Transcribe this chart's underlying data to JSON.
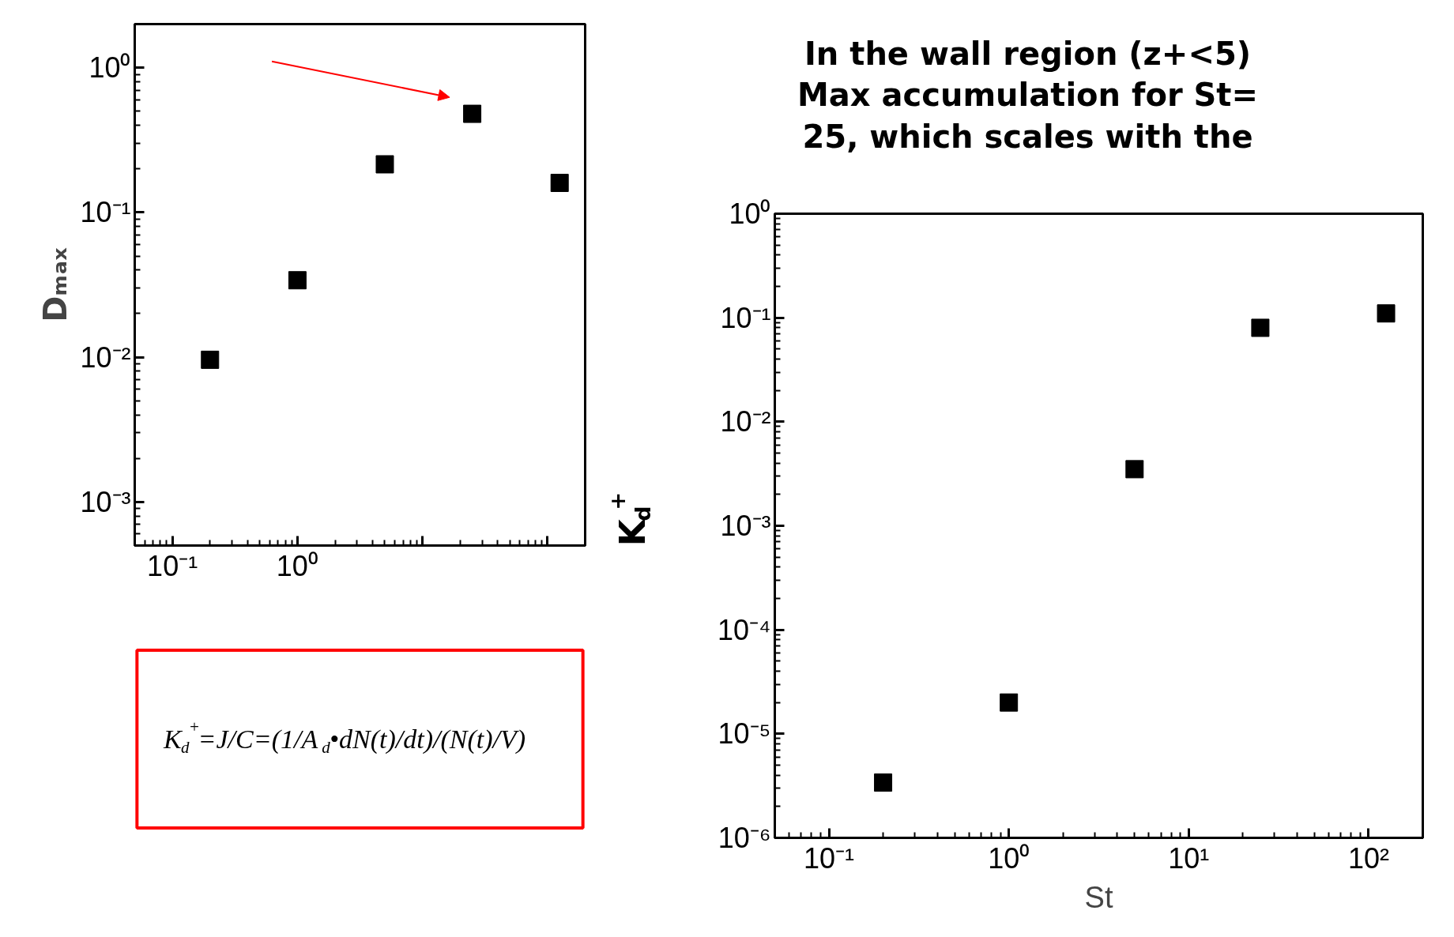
{
  "chart_data": [
    {
      "type": "scatter",
      "ylabel": "Dₘₐₓ",
      "log": "xy",
      "marker": "square",
      "grid": false,
      "xlim": [
        0.05,
        200
      ],
      "ylim": [
        0.0005,
        2
      ],
      "xticks": [
        {
          "value": 0.1,
          "label": "10⁻¹"
        },
        {
          "value": 1,
          "label": "10⁰"
        },
        {
          "value": 10,
          "label": null
        },
        {
          "value": 100,
          "label": null
        }
      ],
      "yticks": [
        {
          "value": 0.001,
          "label": "10⁻³"
        },
        {
          "value": 0.01,
          "label": "10⁻²"
        },
        {
          "value": 0.1,
          "label": "10⁻¹"
        },
        {
          "value": 1,
          "label": "10⁰"
        }
      ],
      "x": [
        0.2,
        1,
        5,
        25,
        125
      ],
      "series": [
        {
          "color": "#000000",
          "values": [
            0.0096,
            0.034,
            0.215,
            0.48,
            0.16
          ]
        }
      ],
      "annotations": [
        "In the wall region (z+<5) Max accumulation for St= 25, which scales with the"
      ]
    },
    {
      "type": "scatter",
      "xlabel": "St",
      "ylabel": "K$_{d}$$^{+}$",
      "log": "xy",
      "marker": "square",
      "grid": false,
      "xlim": [
        0.05,
        200
      ],
      "ylim": [
        1e-06,
        1
      ],
      "xticks": [
        {
          "value": 0.1,
          "label": "10⁻¹"
        },
        {
          "value": 1,
          "label": "10⁰"
        },
        {
          "value": 10,
          "label": "10¹"
        },
        {
          "value": 100,
          "label": "10²"
        }
      ],
      "yticks": [
        {
          "value": 1e-06,
          "label": "10⁻⁶"
        },
        {
          "value": 1e-05,
          "label": "10⁻⁵"
        },
        {
          "value": 0.0001,
          "label": "10⁻⁴"
        },
        {
          "value": 0.001,
          "label": "10⁻³"
        },
        {
          "value": 0.01,
          "label": "10⁻²"
        },
        {
          "value": 0.1,
          "label": "10⁻¹"
        },
        {
          "value": 1,
          "label": "10⁰"
        }
      ],
      "x": [
        0.2,
        1,
        5,
        25,
        125
      ],
      "series": [
        {
          "color": "#000000",
          "values": [
            3.4e-06,
            2e-05,
            0.0035,
            0.08,
            0.11
          ]
        }
      ],
      "annotations": [
        "K$_{d}$$^{+}$=J/C=(1/A$_{d}$•dN(t)/dt)/(N(t)/V)"
      ]
    }
  ]
}
